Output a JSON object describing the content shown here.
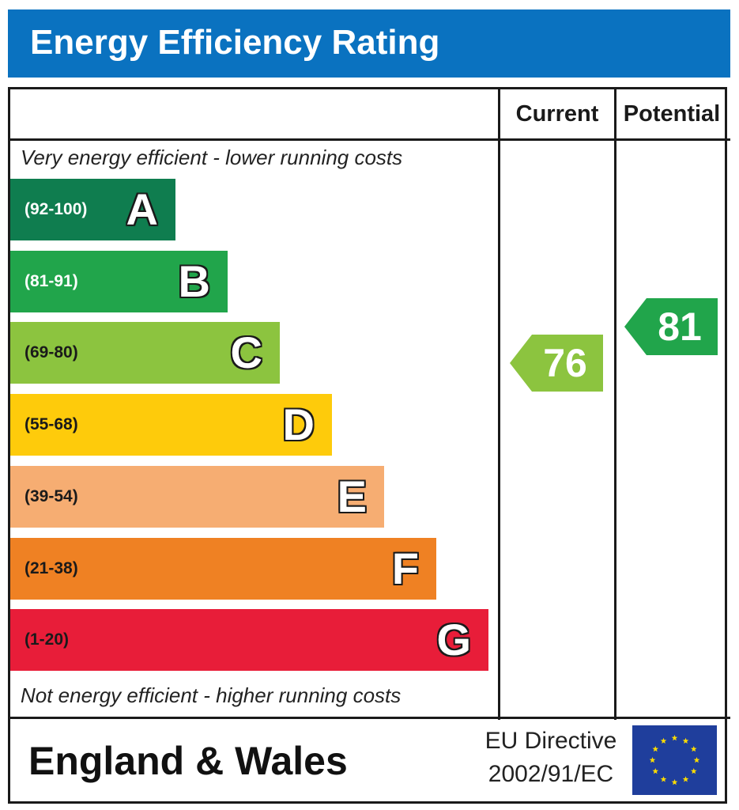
{
  "header": {
    "title": "Energy Efficiency Rating"
  },
  "columns": {
    "current": "Current",
    "potential": "Potential"
  },
  "notes": {
    "top": "Very energy efficient - lower running costs",
    "bottom": "Not energy efficient - higher running costs"
  },
  "footer": {
    "region": "England & Wales",
    "directive_line1": "EU Directive",
    "directive_line2": "2002/91/EC"
  },
  "colors": {
    "A": "#0f7d4f",
    "B": "#21a54b",
    "C": "#8cc43f",
    "D": "#fecb0b",
    "E": "#f6ad72",
    "F": "#ef8123",
    "G": "#e81d39",
    "header": "#0a72c0",
    "eu_flag": "#1f3e9c"
  },
  "chart_data": {
    "type": "bar",
    "title": "Energy Efficiency Rating",
    "categories": [
      "A",
      "B",
      "C",
      "D",
      "E",
      "F",
      "G"
    ],
    "bands": [
      {
        "letter": "A",
        "range": "(92-100)",
        "min": 92,
        "max": 100
      },
      {
        "letter": "B",
        "range": "(81-91)",
        "min": 81,
        "max": 91
      },
      {
        "letter": "C",
        "range": "(69-80)",
        "min": 69,
        "max": 80
      },
      {
        "letter": "D",
        "range": "(55-68)",
        "min": 55,
        "max": 68
      },
      {
        "letter": "E",
        "range": "(39-54)",
        "min": 39,
        "max": 54
      },
      {
        "letter": "F",
        "range": "(21-38)",
        "min": 21,
        "max": 38
      },
      {
        "letter": "G",
        "range": "(1-20)",
        "min": 1,
        "max": 20
      }
    ],
    "series": [
      {
        "name": "Current",
        "value": 76,
        "band": "C"
      },
      {
        "name": "Potential",
        "value": 81,
        "band": "B"
      }
    ]
  }
}
